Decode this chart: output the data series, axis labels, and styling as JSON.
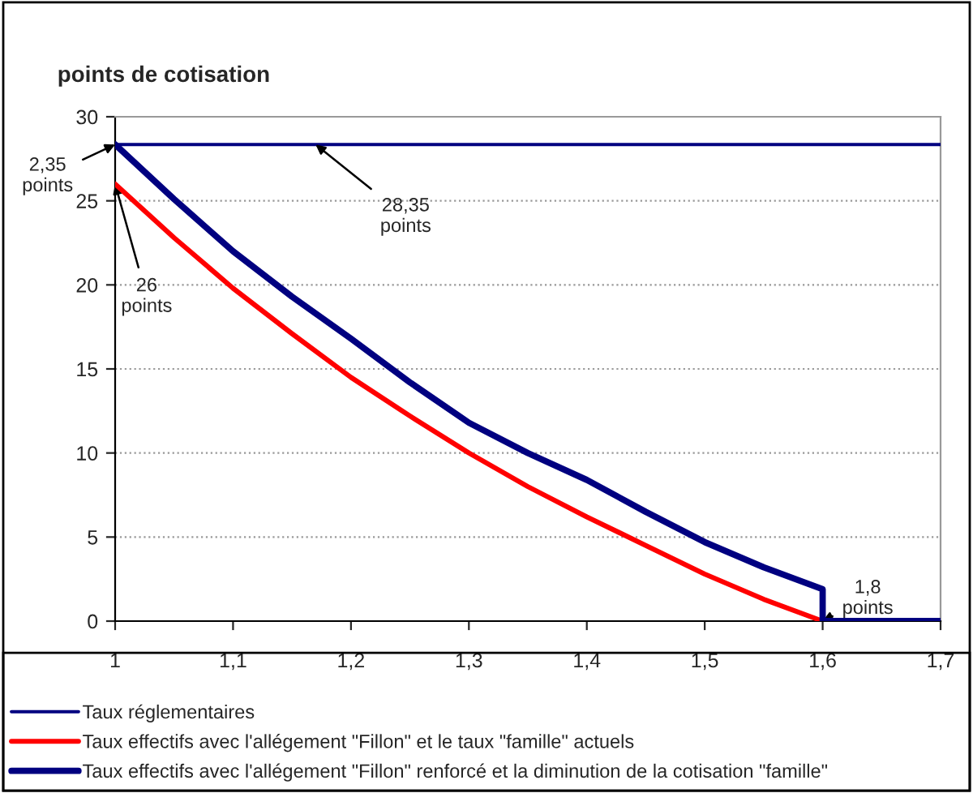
{
  "chart_data": {
    "type": "line",
    "ylabel": "points de cotisation",
    "xlim": [
      1,
      1.7
    ],
    "xticks": [
      1,
      {
        "value": 1.1,
        "label": "1,1"
      },
      {
        "value": 1.2,
        "label": "1,2"
      },
      {
        "value": 1.3,
        "label": "1,3"
      },
      {
        "value": 1.4,
        "label": "1,4"
      },
      {
        "value": 1.5,
        "label": "1,5"
      },
      {
        "value": 1.6,
        "label": "1,6"
      },
      {
        "value": 1.7,
        "label": "1,7"
      }
    ],
    "ylim": [
      0,
      30
    ],
    "yticks": [
      0,
      5,
      10,
      15,
      20,
      25,
      30
    ],
    "grid": "y",
    "legend": "bottom",
    "series": [
      {
        "name": "Taux réglementaires",
        "color": "#000080",
        "x": [
          1,
          1.7
        ],
        "values": [
          28.35,
          28.35
        ]
      },
      {
        "name": "Taux effectifs avec l'allégement \"Fillon\" et le taux \"famille\" actuels",
        "color": "#ff0000",
        "x": [
          1,
          1.05,
          1.1,
          1.15,
          1.2,
          1.25,
          1.3,
          1.35,
          1.4,
          1.45,
          1.5,
          1.55,
          1.6
        ],
        "values": [
          26,
          22.8,
          19.8,
          17.1,
          14.5,
          12.2,
          10.0,
          8.0,
          6.2,
          4.5,
          2.8,
          1.3,
          0
        ]
      },
      {
        "name": "Taux effectifs avec l'allégement \"Fillon\" renforcé et la diminution de la cotisation \"famille\"",
        "color": "#000080",
        "x": [
          1,
          1.05,
          1.1,
          1.15,
          1.2,
          1.25,
          1.3,
          1.35,
          1.4,
          1.45,
          1.5,
          1.55,
          1.6,
          1.6,
          1.7
        ],
        "values": [
          28.35,
          25.1,
          22.0,
          19.3,
          16.8,
          14.2,
          11.8,
          10.0,
          8.4,
          6.5,
          4.7,
          3.2,
          1.9,
          0,
          0
        ]
      }
    ],
    "annotations": [
      {
        "text": "2,35\npoints",
        "x": 1,
        "y": 28.35
      },
      {
        "text": "28,35\npoints",
        "x": 1.17,
        "y": 28.35
      },
      {
        "text": "26\npoints",
        "x": 1,
        "y": 26
      },
      {
        "text": "1,8\npoints",
        "x": 1.6,
        "y": 0
      }
    ]
  }
}
